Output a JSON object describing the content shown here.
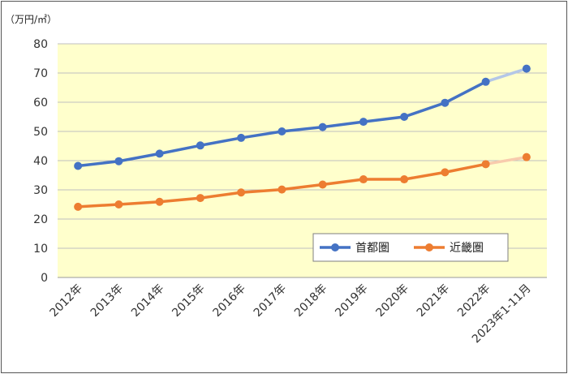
{
  "chart_data": {
    "type": "line",
    "title": "",
    "unit_label": "（万円/㎡）",
    "categories": [
      "2012年",
      "2013年",
      "2014年",
      "2015年",
      "2016年",
      "2017年",
      "2018年",
      "2019年",
      "2020年",
      "2021年",
      "2022年",
      "2023年1-11月"
    ],
    "ylim": [
      0,
      80
    ],
    "yticks": [
      0,
      10,
      20,
      30,
      40,
      50,
      60,
      70,
      80
    ],
    "grid": true,
    "plot_background": "#FFFFCC",
    "legend_position": "bottom-right",
    "series": [
      {
        "name": "首都圏",
        "color": "#4472C4",
        "projected_segment_color": "#B4C7E7",
        "values": [
          38.2,
          39.8,
          42.4,
          45.2,
          47.8,
          50.0,
          51.5,
          53.3,
          55.0,
          59.8,
          67.0,
          71.5
        ]
      },
      {
        "name": "近畿圏",
        "color": "#ED7D31",
        "projected_segment_color": "#F8CBAD",
        "values": [
          24.2,
          25.0,
          25.9,
          27.2,
          29.1,
          30.1,
          31.8,
          33.6,
          33.6,
          36.0,
          38.8,
          41.2
        ]
      }
    ]
  }
}
